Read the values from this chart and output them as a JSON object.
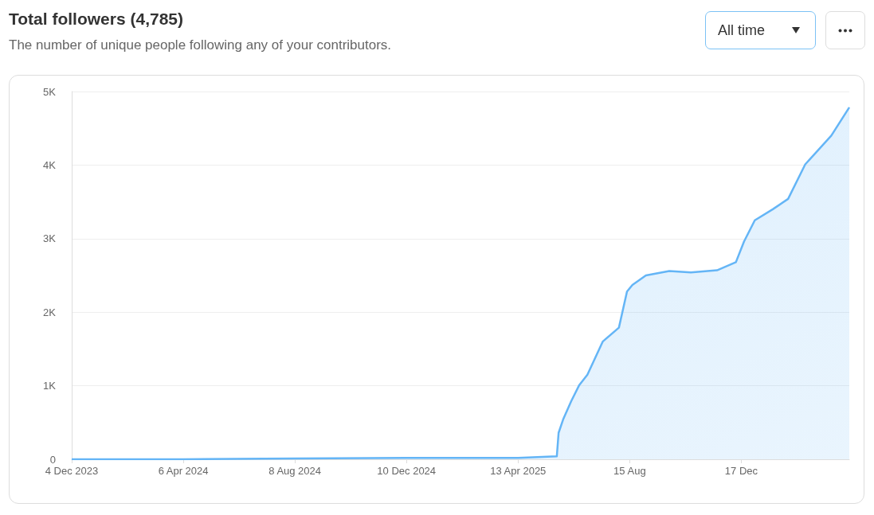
{
  "chart_data": {
    "type": "area",
    "title": "Total followers (4,785)",
    "subtitle": "The number of unique people following any of your contributors.",
    "annotations": [
      "All time"
    ],
    "x": [
      "2023-12-04",
      "2024-04-06",
      "2024-08-08",
      "2024-12-10",
      "2025-04-13",
      "2025-05-26",
      "2025-05-28",
      "2025-06-02",
      "2025-06-11",
      "2025-06-20",
      "2025-06-29",
      "2025-07-16",
      "2025-08-03",
      "2025-08-12",
      "2025-08-18",
      "2025-09-02",
      "2025-09-28",
      "2025-10-22",
      "2025-11-20",
      "2025-12-11",
      "2025-12-20",
      "2026-01-01",
      "2026-01-21",
      "2026-02-07",
      "2026-02-26",
      "2026-03-27",
      "2026-04-16"
    ],
    "series": [
      {
        "color": "#64b5f6",
        "values": [
          0,
          0,
          10,
          20,
          20,
          40,
          360,
          540,
          790,
          1010,
          1150,
          1600,
          1790,
          2280,
          2370,
          2500,
          2560,
          2540,
          2570,
          2680,
          2960,
          3250,
          3400,
          3540,
          4010,
          4400,
          4785
        ]
      }
    ],
    "xlim": [
      "2023-12-04",
      "2026-04-16"
    ],
    "xticks": [
      {
        "value": "2023-12-04",
        "label": "4 Dec 2023"
      },
      {
        "value": "2024-04-06",
        "label": "6 Apr 2024"
      },
      {
        "value": "2024-08-08",
        "label": "8 Aug 2024"
      },
      {
        "value": "2024-12-10",
        "label": "10 Dec 2024"
      },
      {
        "value": "2025-04-13",
        "label": "13 Apr 2025"
      },
      {
        "value": "2025-08-15",
        "label": "15 Aug"
      },
      {
        "value": "2025-12-17",
        "label": "17 Dec"
      }
    ],
    "ylim": [
      0,
      5000
    ],
    "yticks": [
      0,
      {
        "value": 1000,
        "label": "1K"
      },
      {
        "value": 2000,
        "label": "2K"
      },
      {
        "value": 3000,
        "label": "3K"
      },
      {
        "value": 4000,
        "label": "4K"
      },
      {
        "value": 5000,
        "label": "5K"
      }
    ],
    "grid": "y",
    "marker": "none",
    "line_style": "solid"
  }
}
